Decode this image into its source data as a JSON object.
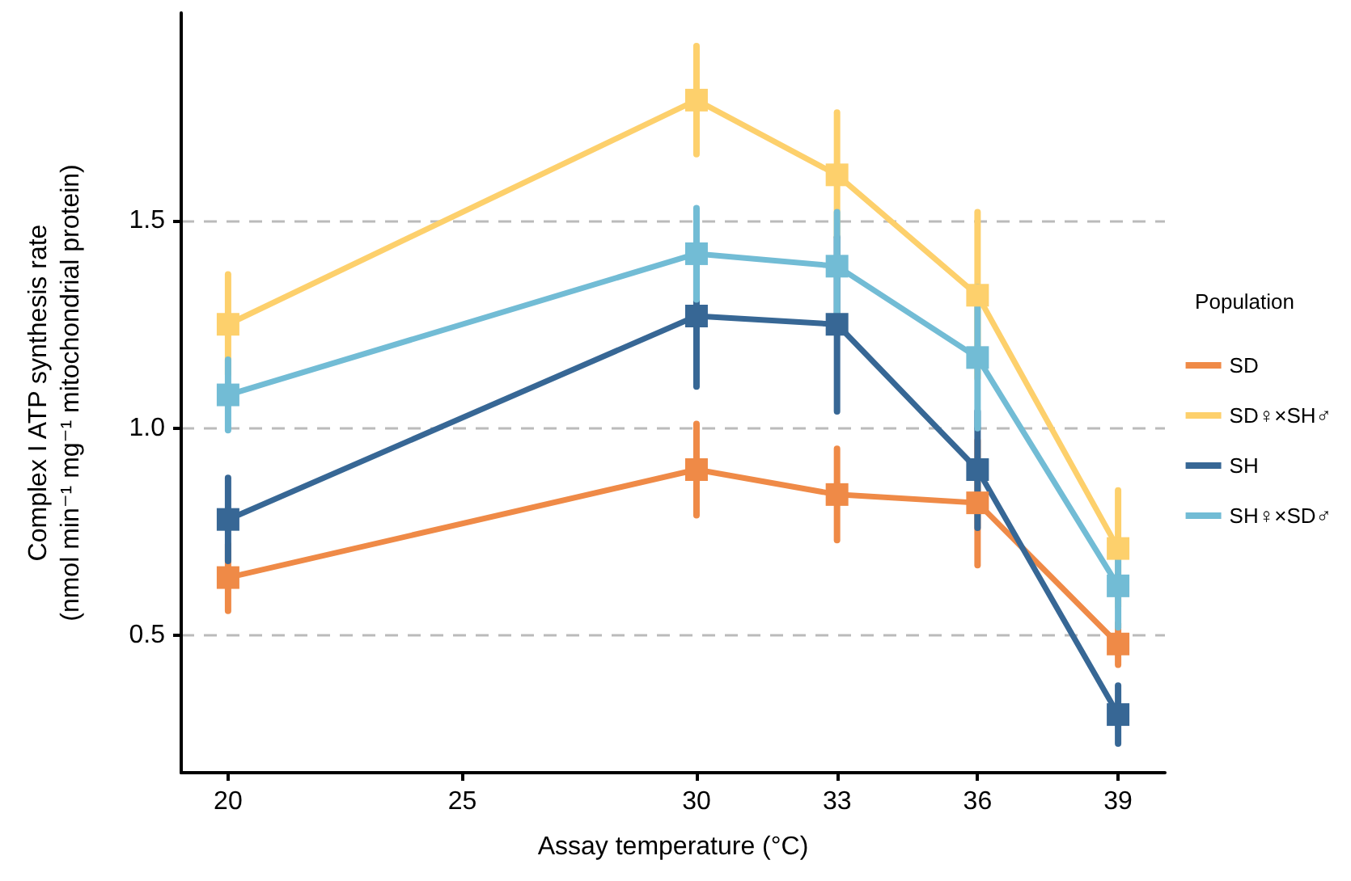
{
  "chart_data": {
    "type": "line",
    "xlabel": "Assay temperature (°C)",
    "ylabel": "Complex I ATP synthesis rate\n(nmol min⁻¹ mg⁻¹ mitochondrial protein)",
    "legend_title": "Population",
    "legend": "right",
    "marker": "square",
    "line_style": "solid",
    "grid": "y",
    "x": [
      20,
      30,
      33,
      36,
      39
    ],
    "xlim": [
      19,
      40
    ],
    "xticks": [
      20,
      25,
      30,
      33,
      36,
      39
    ],
    "ylim": [
      0.17,
      2.0
    ],
    "yticks": [
      {
        "value": 0.5,
        "label": "0.5"
      },
      {
        "value": 1,
        "label": "1.0"
      },
      {
        "value": 1.5,
        "label": "1.5"
      }
    ],
    "series": [
      {
        "name": "SD",
        "color": "#ef8a47",
        "values": [
          0.64,
          0.9,
          0.84,
          0.82,
          0.48
        ],
        "errors": [
          0.08,
          0.11,
          0.11,
          0.15,
          0.05
        ]
      },
      {
        "name": "SD♀×SH♂",
        "color": "#fdd06c",
        "values": [
          1.25,
          1.79,
          1.61,
          1.32,
          0.71
        ],
        "errors": [
          0.12,
          0.13,
          0.15,
          0.2,
          0.14
        ]
      },
      {
        "name": "SH",
        "color": "#376795",
        "values": [
          0.78,
          1.27,
          1.25,
          0.9,
          0.31
        ],
        "errors": [
          0.1,
          0.17,
          0.21,
          0.14,
          0.07
        ]
      },
      {
        "name": "SH♀×SD♂",
        "color": "#72bcd5",
        "values": [
          1.08,
          1.42,
          1.39,
          1.17,
          0.62
        ],
        "errors": [
          0.085,
          0.11,
          0.13,
          0.17,
          0.1
        ]
      }
    ]
  }
}
